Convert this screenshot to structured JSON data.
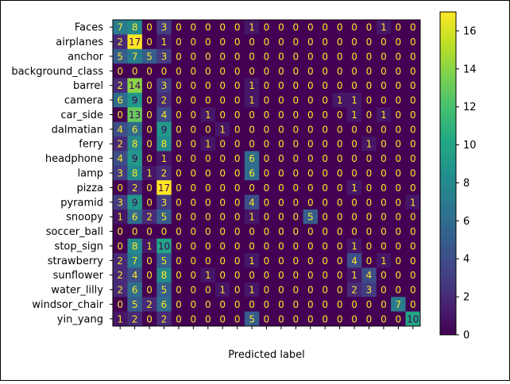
{
  "chart_data": {
    "type": "heatmap",
    "title": "",
    "xlabel": "Predicted label",
    "ylabel": "",
    "row_labels": [
      "Faces",
      "airplanes",
      "anchor",
      "background_class",
      "barrel",
      "camera",
      "car_side",
      "dalmatian",
      "ferry",
      "headphone",
      "lamp",
      "pizza",
      "pyramid",
      "snoopy",
      "soccer_ball",
      "stop_sign",
      "strawberry",
      "sunflower",
      "water_lilly",
      "windsor_chair",
      "yin_yang"
    ],
    "matrix": [
      [
        7,
        8,
        0,
        3,
        0,
        0,
        0,
        0,
        0,
        1,
        0,
        0,
        0,
        0,
        0,
        0,
        0,
        0,
        1,
        0,
        0
      ],
      [
        2,
        17,
        0,
        1,
        0,
        0,
        0,
        0,
        0,
        0,
        0,
        0,
        0,
        0,
        0,
        0,
        0,
        0,
        0,
        0,
        0
      ],
      [
        5,
        7,
        5,
        3,
        0,
        0,
        0,
        0,
        0,
        0,
        0,
        0,
        0,
        0,
        0,
        0,
        0,
        0,
        0,
        0,
        0
      ],
      [
        0,
        0,
        0,
        0,
        0,
        0,
        0,
        0,
        0,
        0,
        0,
        0,
        0,
        0,
        0,
        0,
        0,
        0,
        0,
        0,
        0
      ],
      [
        2,
        14,
        0,
        3,
        0,
        0,
        0,
        0,
        0,
        1,
        0,
        0,
        0,
        0,
        0,
        0,
        0,
        0,
        0,
        0,
        0
      ],
      [
        6,
        9,
        0,
        2,
        0,
        0,
        0,
        0,
        0,
        1,
        0,
        0,
        0,
        0,
        0,
        1,
        1,
        0,
        0,
        0,
        0
      ],
      [
        0,
        13,
        0,
        4,
        0,
        0,
        1,
        0,
        0,
        0,
        0,
        0,
        0,
        0,
        0,
        0,
        1,
        0,
        1,
        0,
        0
      ],
      [
        4,
        6,
        0,
        9,
        0,
        0,
        0,
        1,
        0,
        0,
        0,
        0,
        0,
        0,
        0,
        0,
        0,
        0,
        0,
        0,
        0
      ],
      [
        2,
        8,
        0,
        8,
        0,
        0,
        1,
        0,
        0,
        0,
        0,
        0,
        0,
        0,
        0,
        0,
        0,
        1,
        0,
        0,
        0
      ],
      [
        4,
        9,
        0,
        1,
        0,
        0,
        0,
        0,
        0,
        6,
        0,
        0,
        0,
        0,
        0,
        0,
        0,
        0,
        0,
        0,
        0
      ],
      [
        3,
        8,
        1,
        2,
        0,
        0,
        0,
        0,
        0,
        6,
        0,
        0,
        0,
        0,
        0,
        0,
        0,
        0,
        0,
        0,
        0
      ],
      [
        0,
        2,
        0,
        17,
        0,
        0,
        0,
        0,
        0,
        0,
        0,
        0,
        0,
        0,
        0,
        0,
        1,
        0,
        0,
        0,
        0
      ],
      [
        3,
        9,
        0,
        3,
        0,
        0,
        0,
        0,
        0,
        4,
        0,
        0,
        0,
        0,
        0,
        0,
        0,
        0,
        0,
        0,
        1
      ],
      [
        1,
        6,
        2,
        5,
        0,
        0,
        0,
        0,
        0,
        1,
        0,
        0,
        0,
        5,
        0,
        0,
        0,
        0,
        0,
        0,
        0
      ],
      [
        0,
        0,
        0,
        0,
        0,
        0,
        0,
        0,
        0,
        0,
        0,
        0,
        0,
        0,
        0,
        0,
        0,
        0,
        0,
        0,
        0
      ],
      [
        0,
        8,
        1,
        10,
        0,
        0,
        0,
        0,
        0,
        0,
        0,
        0,
        0,
        0,
        0,
        0,
        1,
        0,
        0,
        0,
        0
      ],
      [
        2,
        7,
        0,
        5,
        0,
        0,
        0,
        0,
        0,
        1,
        0,
        0,
        0,
        0,
        0,
        0,
        4,
        0,
        1,
        0,
        0
      ],
      [
        2,
        4,
        0,
        8,
        0,
        0,
        1,
        0,
        0,
        0,
        0,
        0,
        0,
        0,
        0,
        0,
        1,
        4,
        0,
        0,
        0
      ],
      [
        2,
        6,
        0,
        5,
        0,
        0,
        0,
        1,
        0,
        1,
        0,
        0,
        0,
        0,
        0,
        0,
        2,
        3,
        0,
        0,
        0
      ],
      [
        0,
        5,
        2,
        6,
        0,
        0,
        0,
        0,
        0,
        0,
        0,
        0,
        0,
        0,
        0,
        0,
        0,
        0,
        0,
        7,
        0
      ],
      [
        1,
        2,
        0,
        2,
        0,
        0,
        0,
        0,
        0,
        5,
        0,
        0,
        0,
        0,
        0,
        0,
        0,
        0,
        0,
        0,
        10
      ]
    ],
    "colorbar": {
      "colormap": "viridis",
      "vmin": 0,
      "vmax": 17,
      "ticks": [
        0,
        2,
        4,
        6,
        8,
        10,
        12,
        14,
        16
      ]
    },
    "x_tick_labels_visible": false,
    "grid": false
  }
}
